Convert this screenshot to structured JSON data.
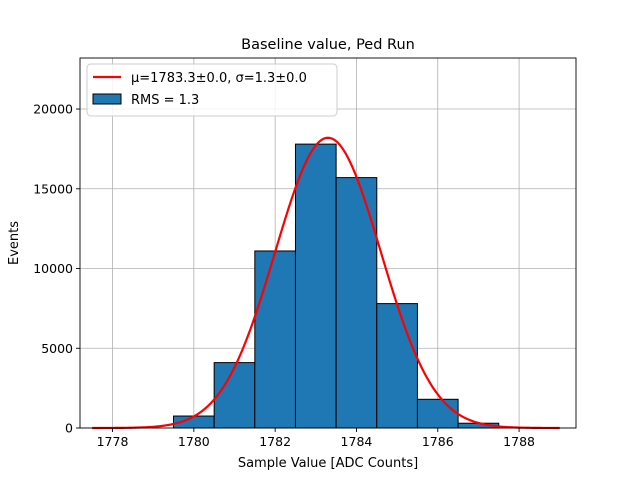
{
  "chart_data": {
    "type": "bar",
    "title": "Baseline value, Ped Run",
    "xlabel": "Sample Value [ADC Counts]",
    "ylabel": "Events",
    "xlim": [
      1777.2,
      1789.4
    ],
    "ylim": [
      0,
      23200
    ],
    "x_ticks": [
      1778,
      1780,
      1782,
      1784,
      1786,
      1788
    ],
    "y_ticks": [
      0,
      5000,
      10000,
      15000,
      20000
    ],
    "x_tick_labels": [
      "1778",
      "1780",
      "1782",
      "1784",
      "1786",
      "1788"
    ],
    "y_tick_labels": [
      "0",
      "5000",
      "10000",
      "15000",
      "20000"
    ],
    "grid": true,
    "legend_position": "top-left",
    "histogram": {
      "name": "RMS = 1.3",
      "color": "#1f77b4",
      "edge_color": "#000000",
      "bins": [
        {
          "x0": 1779.5,
          "x1": 1780.5,
          "count": 750
        },
        {
          "x0": 1780.5,
          "x1": 1781.5,
          "count": 4100
        },
        {
          "x0": 1781.5,
          "x1": 1782.5,
          "count": 11100
        },
        {
          "x0": 1782.5,
          "x1": 1783.5,
          "count": 17800
        },
        {
          "x0": 1783.5,
          "x1": 1784.5,
          "count": 15700
        },
        {
          "x0": 1784.5,
          "x1": 1785.5,
          "count": 7800
        },
        {
          "x0": 1785.5,
          "x1": 1786.5,
          "count": 1800
        },
        {
          "x0": 1786.5,
          "x1": 1787.5,
          "count": 300
        }
      ]
    },
    "fit": {
      "name": "μ=1783.3±0.0, σ=1.3±0.0",
      "color": "#ff0000",
      "mu": 1783.3,
      "sigma": 1.3,
      "amplitude": 18200,
      "x_range": [
        1777.5,
        1789.0
      ]
    }
  }
}
